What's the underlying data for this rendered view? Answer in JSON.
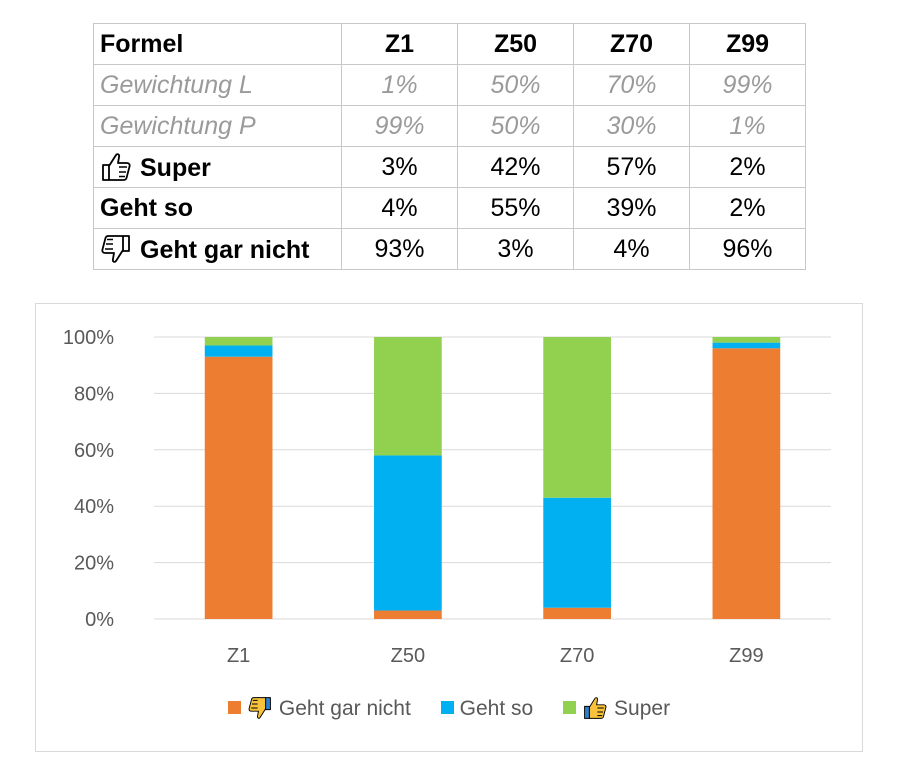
{
  "table": {
    "columns": [
      "Formel",
      "Z1",
      "Z50",
      "Z70",
      "Z99"
    ],
    "rows": [
      {
        "label": "Gewichtung L",
        "values": [
          "1%",
          "50%",
          "70%",
          "99%"
        ]
      },
      {
        "label": "Gewichtung P",
        "values": [
          "99%",
          "50%",
          "30%",
          "1%"
        ]
      },
      {
        "label": "Super",
        "icon": "thumbs-up-icon",
        "values": [
          "3%",
          "42%",
          "57%",
          "2%"
        ]
      },
      {
        "label": "Geht so",
        "values": [
          "4%",
          "55%",
          "39%",
          "2%"
        ]
      },
      {
        "label": "Geht gar nicht",
        "icon": "thumbs-down-icon",
        "values": [
          "93%",
          "3%",
          "4%",
          "96%"
        ]
      }
    ]
  },
  "chart_data": {
    "type": "bar",
    "stacked": true,
    "categories": [
      "Z1",
      "Z50",
      "Z70",
      "Z99"
    ],
    "series": [
      {
        "name": "Geht gar nicht",
        "icon": "thumbs-down-icon",
        "color": "#ed7d31",
        "values": [
          93,
          3,
          4,
          96
        ]
      },
      {
        "name": "Geht so",
        "color": "#00b0f0",
        "values": [
          4,
          55,
          39,
          2
        ]
      },
      {
        "name": "Super",
        "icon": "thumbs-up-icon",
        "color": "#92d050",
        "values": [
          3,
          42,
          57,
          2
        ]
      }
    ],
    "ylim": [
      0,
      100
    ],
    "yticks": [
      "0%",
      "20%",
      "40%",
      "60%",
      "80%",
      "100%"
    ],
    "grid": true,
    "gridColor": "#d9d9d9",
    "legend": "bottom"
  }
}
